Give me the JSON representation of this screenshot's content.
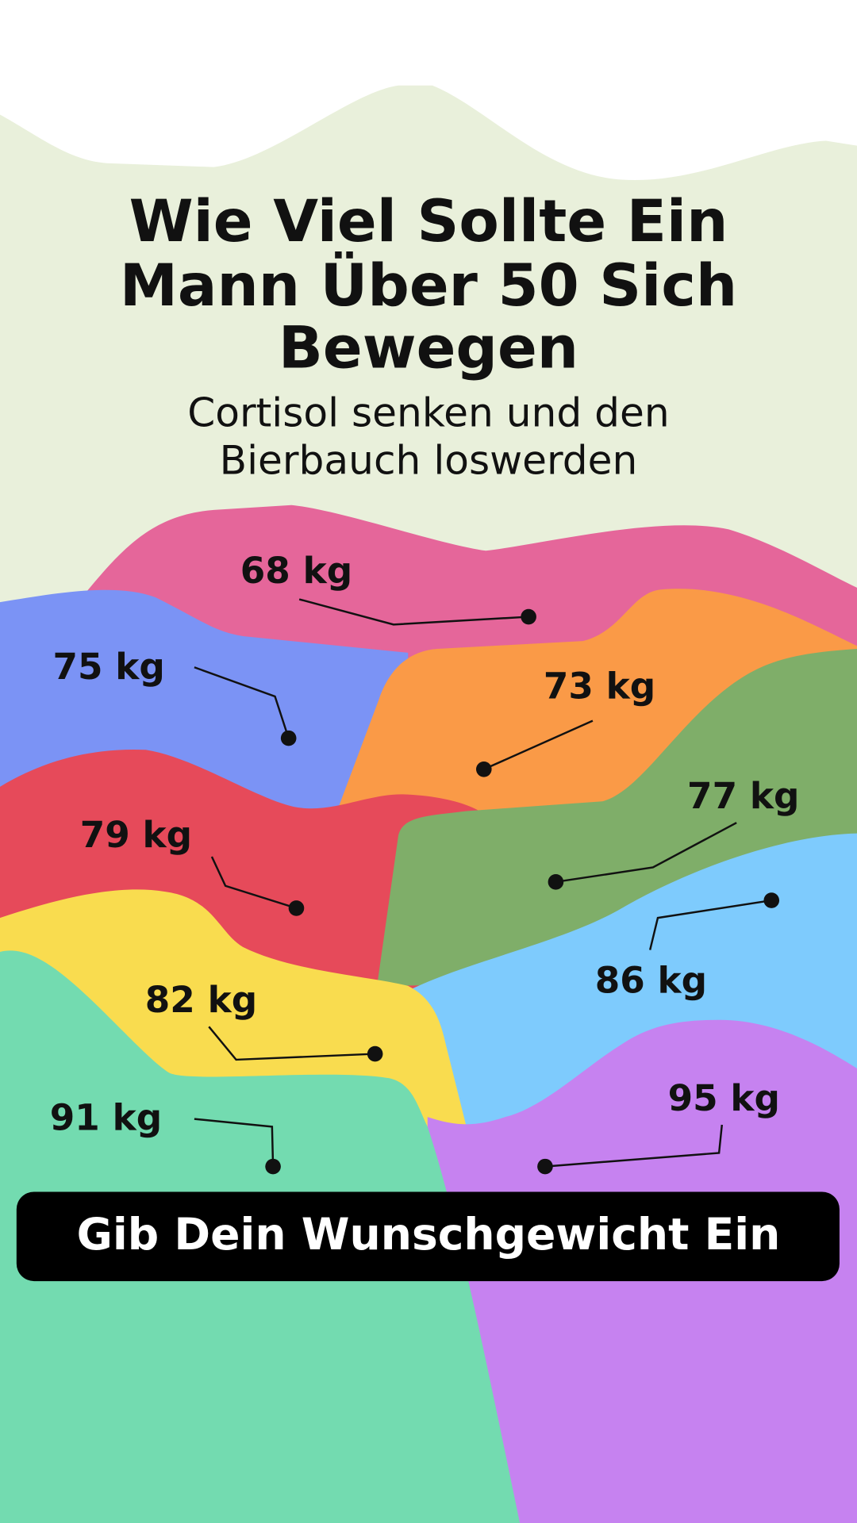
{
  "header": {
    "title_lines": [
      "Wie Viel Sollte Ein",
      "Mann Über 50 Sich",
      "Bewegen"
    ],
    "subtitle_lines": [
      "Cortisol senken und den",
      "Bierbauch loswerden"
    ]
  },
  "labels": [
    "68 kg",
    "75 kg",
    "73 kg",
    "77 kg",
    "79 kg",
    "86 kg",
    "82 kg",
    "91 kg",
    "95 kg"
  ],
  "button": {
    "text": "Gib Dein Wunschgewicht Ein"
  }
}
